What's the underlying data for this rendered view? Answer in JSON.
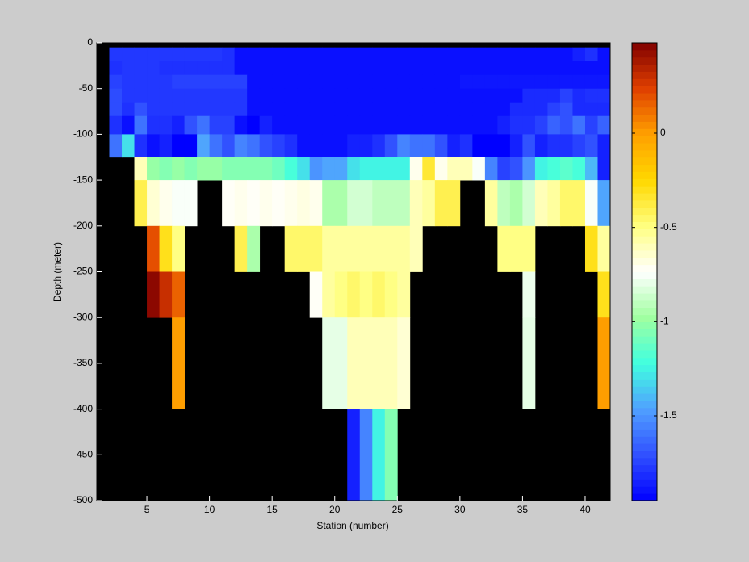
{
  "chart_data": {
    "type": "heatmap",
    "xlabel": "Station (number)",
    "ylabel": "Depth (meter)",
    "xlim": [
      1,
      42
    ],
    "ylim": [
      -500,
      0
    ],
    "xticks": [
      5,
      10,
      15,
      20,
      25,
      30,
      35,
      40
    ],
    "yticks": [
      0,
      -50,
      -100,
      -150,
      -200,
      -250,
      -300,
      -350,
      -400,
      -450,
      -500
    ],
    "xbins": [
      2,
      3,
      4,
      5,
      6,
      7,
      8,
      9,
      10,
      11,
      12,
      13,
      14,
      15,
      16,
      17,
      18,
      19,
      20,
      21,
      22,
      23,
      24,
      25,
      26,
      27,
      28,
      29,
      30,
      31,
      32,
      33,
      34,
      35,
      36,
      37,
      38,
      39,
      40,
      41,
      42
    ],
    "ybins": [
      -5,
      -20,
      -35,
      -50,
      -65,
      -80,
      -100,
      -125,
      -150,
      -200,
      -250,
      -300,
      -400,
      -500
    ],
    "clim": [
      -1.95,
      0.48
    ],
    "cticks": [
      0,
      -0.5,
      -1,
      -1.5
    ],
    "colormap": [
      "#0000ff",
      "#3050ff",
      "#50a0ff",
      "#40ffe0",
      "#a0ffa0",
      "#ffffff",
      "#ffff80",
      "#ffd800",
      "#ffa000",
      "#e04000",
      "#800000"
    ],
    "values": [
      [
        -1.78,
        -1.78,
        -1.78,
        -1.78,
        -1.78,
        -1.78,
        -1.78,
        -1.78,
        -1.78,
        -1.8,
        -1.9,
        -1.9,
        -1.9,
        -1.9,
        -1.9,
        -1.9,
        -1.9,
        -1.9,
        -1.9,
        -1.9,
        -1.9,
        -1.9,
        -1.9,
        -1.9,
        -1.9,
        -1.9,
        -1.9,
        -1.9,
        -1.9,
        -1.9,
        -1.9,
        -1.9,
        -1.9,
        -1.9,
        -1.9,
        -1.9,
        -1.9,
        -1.85,
        -1.8,
        -1.9
      ],
      [
        -1.8,
        -1.78,
        -1.78,
        -1.78,
        -1.8,
        -1.8,
        -1.8,
        -1.8,
        -1.8,
        -1.8,
        -1.9,
        -1.9,
        -1.9,
        -1.9,
        -1.9,
        -1.9,
        -1.9,
        -1.9,
        -1.9,
        -1.9,
        -1.9,
        -1.9,
        -1.9,
        -1.9,
        -1.9,
        -1.9,
        -1.9,
        -1.9,
        -1.9,
        -1.9,
        -1.9,
        -1.9,
        -1.9,
        -1.9,
        -1.9,
        -1.9,
        -1.9,
        -1.9,
        -1.9,
        -1.9
      ],
      [
        -1.75,
        -1.78,
        -1.78,
        -1.78,
        -1.78,
        -1.75,
        -1.75,
        -1.75,
        -1.75,
        -1.75,
        -1.75,
        -1.9,
        -1.9,
        -1.9,
        -1.9,
        -1.9,
        -1.9,
        -1.9,
        -1.9,
        -1.9,
        -1.9,
        -1.9,
        -1.9,
        -1.9,
        -1.9,
        -1.9,
        -1.9,
        -1.9,
        -1.88,
        -1.88,
        -1.88,
        -1.88,
        -1.88,
        -1.88,
        -1.88,
        -1.88,
        -1.88,
        -1.88,
        -1.88,
        -1.88
      ],
      [
        -1.72,
        -1.78,
        -1.78,
        -1.78,
        -1.78,
        -1.78,
        -1.78,
        -1.78,
        -1.78,
        -1.78,
        -1.78,
        -1.9,
        -1.9,
        -1.9,
        -1.9,
        -1.9,
        -1.9,
        -1.9,
        -1.9,
        -1.9,
        -1.9,
        -1.9,
        -1.9,
        -1.9,
        -1.9,
        -1.9,
        -1.9,
        -1.9,
        -1.9,
        -1.9,
        -1.9,
        -1.9,
        -1.9,
        -1.82,
        -1.82,
        -1.82,
        -1.75,
        -1.82,
        -1.8,
        -1.8
      ],
      [
        -1.72,
        -1.8,
        -1.7,
        -1.78,
        -1.78,
        -1.78,
        -1.78,
        -1.78,
        -1.78,
        -1.78,
        -1.78,
        -1.9,
        -1.9,
        -1.9,
        -1.9,
        -1.9,
        -1.9,
        -1.9,
        -1.9,
        -1.9,
        -1.9,
        -1.9,
        -1.9,
        -1.9,
        -1.9,
        -1.9,
        -1.9,
        -1.9,
        -1.9,
        -1.9,
        -1.9,
        -1.9,
        -1.82,
        -1.82,
        -1.82,
        -1.75,
        -1.7,
        -1.82,
        -1.82,
        -1.82
      ],
      [
        -1.8,
        -1.9,
        -1.6,
        -1.8,
        -1.8,
        -1.85,
        -1.7,
        -1.6,
        -1.75,
        -1.75,
        -1.9,
        -1.95,
        -1.85,
        -1.9,
        -1.9,
        -1.9,
        -1.9,
        -1.9,
        -1.9,
        -1.9,
        -1.9,
        -1.9,
        -1.9,
        -1.9,
        -1.9,
        -1.9,
        -1.9,
        -1.9,
        -1.9,
        -1.9,
        -1.9,
        -1.85,
        -1.8,
        -1.8,
        -1.75,
        -1.65,
        -1.7,
        -1.6,
        -1.75,
        -1.65
      ],
      [
        -1.6,
        -1.3,
        -1.8,
        -1.9,
        -1.85,
        -1.95,
        -1.95,
        -1.45,
        -1.6,
        -1.7,
        -1.55,
        -1.6,
        -1.7,
        -1.75,
        -1.8,
        -1.9,
        -1.9,
        -1.9,
        -1.9,
        -1.85,
        -1.85,
        -1.8,
        -1.7,
        -1.55,
        -1.6,
        -1.6,
        -1.7,
        -1.85,
        -1.8,
        -1.95,
        -1.95,
        -1.95,
        -1.85,
        -1.7,
        -1.85,
        -1.8,
        -1.8,
        -1.75,
        -1.7,
        -1.85
      ],
      [
        null,
        null,
        -0.6,
        -1.0,
        -1.05,
        -1.0,
        -1.05,
        -1.0,
        -1.0,
        -1.05,
        -1.05,
        -1.05,
        -1.05,
        -1.1,
        -1.2,
        -1.3,
        -1.5,
        -1.45,
        -1.45,
        -1.3,
        -1.25,
        -1.25,
        -1.25,
        -1.25,
        -0.7,
        -0.35,
        -0.7,
        -0.6,
        -0.6,
        -0.75,
        -1.55,
        -1.75,
        -1.7,
        -1.5,
        -1.25,
        -1.2,
        -1.15,
        -1.2,
        -1.4,
        -1.85
      ],
      [
        null,
        null,
        -0.4,
        -0.65,
        -0.7,
        -0.75,
        -0.75,
        null,
        null,
        -0.72,
        -0.7,
        -0.72,
        -0.7,
        -0.72,
        -0.7,
        -0.68,
        -0.7,
        -0.95,
        -0.95,
        -0.85,
        -0.85,
        -0.9,
        -0.9,
        -0.9,
        -0.6,
        -0.55,
        -0.4,
        -0.4,
        null,
        null,
        -0.55,
        -0.9,
        -0.95,
        -0.85,
        -0.6,
        -0.55,
        -0.45,
        -0.45,
        -0.75,
        -1.45
      ],
      [
        null,
        null,
        null,
        0.2,
        -0.3,
        -0.5,
        null,
        null,
        null,
        null,
        -0.4,
        -0.95,
        null,
        null,
        -0.45,
        -0.45,
        -0.45,
        -0.55,
        -0.55,
        -0.55,
        -0.55,
        -0.55,
        -0.55,
        -0.55,
        -0.6,
        null,
        null,
        null,
        null,
        null,
        null,
        -0.5,
        -0.5,
        -0.5,
        null,
        null,
        null,
        null,
        -0.3,
        -0.55
      ],
      [
        null,
        null,
        null,
        0.45,
        0.3,
        0.15,
        null,
        null,
        null,
        null,
        null,
        null,
        null,
        null,
        null,
        null,
        -0.72,
        -0.55,
        -0.5,
        -0.45,
        -0.5,
        -0.45,
        -0.5,
        -0.55,
        null,
        null,
        null,
        null,
        null,
        null,
        null,
        null,
        null,
        -0.78,
        null,
        null,
        null,
        null,
        null,
        -0.3
      ],
      [
        null,
        null,
        null,
        null,
        null,
        0,
        null,
        null,
        null,
        null,
        null,
        null,
        null,
        null,
        null,
        null,
        null,
        -0.8,
        -0.8,
        -0.6,
        -0.6,
        -0.6,
        -0.6,
        -0.65,
        null,
        null,
        null,
        null,
        null,
        null,
        null,
        null,
        null,
        -0.8,
        null,
        null,
        null,
        null,
        null,
        0
      ],
      [
        null,
        null,
        null,
        null,
        null,
        null,
        null,
        null,
        null,
        null,
        null,
        null,
        null,
        null,
        null,
        null,
        null,
        null,
        null,
        -1.85,
        -1.55,
        -1.25,
        -1.05,
        null,
        null,
        null,
        null,
        null,
        null,
        null,
        null,
        null,
        null,
        null,
        null,
        null,
        null,
        null,
        null,
        null
      ]
    ]
  }
}
